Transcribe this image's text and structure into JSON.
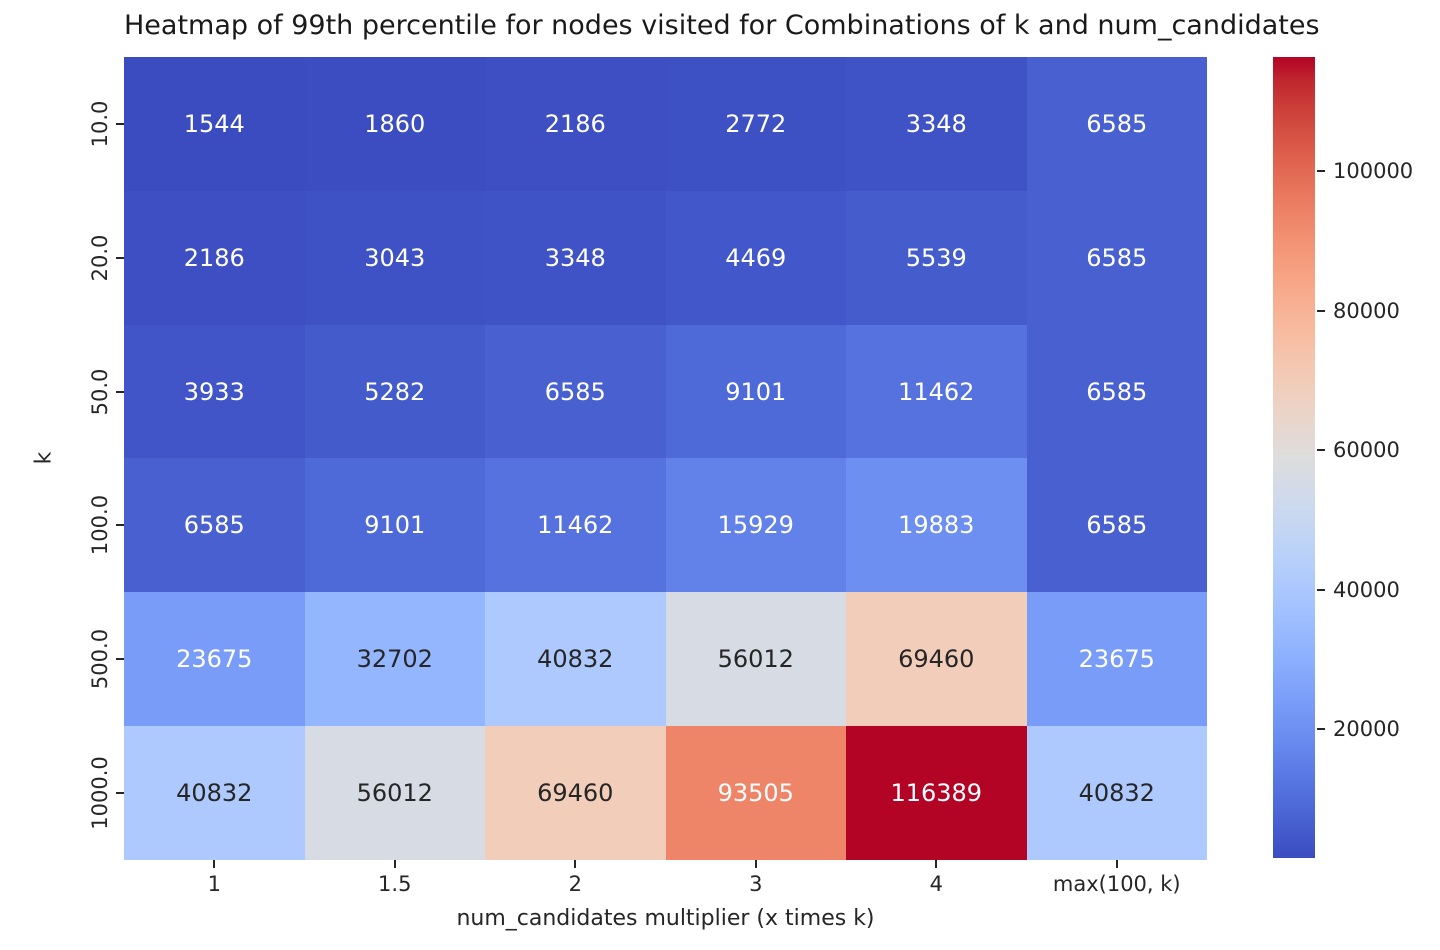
{
  "chart_data": {
    "type": "heatmap",
    "title": "Heatmap of 99th percentile for nodes visited for Combinations of k and num_candidates",
    "xlabel": "num_candidates multiplier (x times k)",
    "ylabel": "k",
    "x_categories": [
      "1",
      "1.5",
      "2",
      "3",
      "4",
      "max(100, k)"
    ],
    "y_categories": [
      "10.0",
      "20.0",
      "50.0",
      "100.0",
      "500.0",
      "1000.0"
    ],
    "values": [
      [
        1544,
        1860,
        2186,
        2772,
        3348,
        6585
      ],
      [
        2186,
        3043,
        3348,
        4469,
        5539,
        6585
      ],
      [
        3933,
        5282,
        6585,
        9101,
        11462,
        6585
      ],
      [
        6585,
        9101,
        11462,
        15929,
        19883,
        6585
      ],
      [
        23675,
        32702,
        40832,
        56012,
        69460,
        23675
      ],
      [
        40832,
        56012,
        69460,
        93505,
        116389,
        40832
      ]
    ],
    "vmin": 1544,
    "vmax": 116389,
    "colormap": "coolwarm",
    "annotated": true,
    "grid": false,
    "legend_position": "right-colorbar",
    "colorbar_ticks": [
      20000,
      40000,
      60000,
      80000,
      100000
    ],
    "colorbar_tick_labels": [
      "20000",
      "40000",
      "60000",
      "80000",
      "100000"
    ],
    "colors": {
      "min_color": "#3b4cc0",
      "mid_color": "#dddddd",
      "max_color": "#b40426",
      "annotation_dark": "#262626",
      "annotation_light": "#ffffff",
      "tick_color": "#262626",
      "background": "#ffffff"
    }
  }
}
